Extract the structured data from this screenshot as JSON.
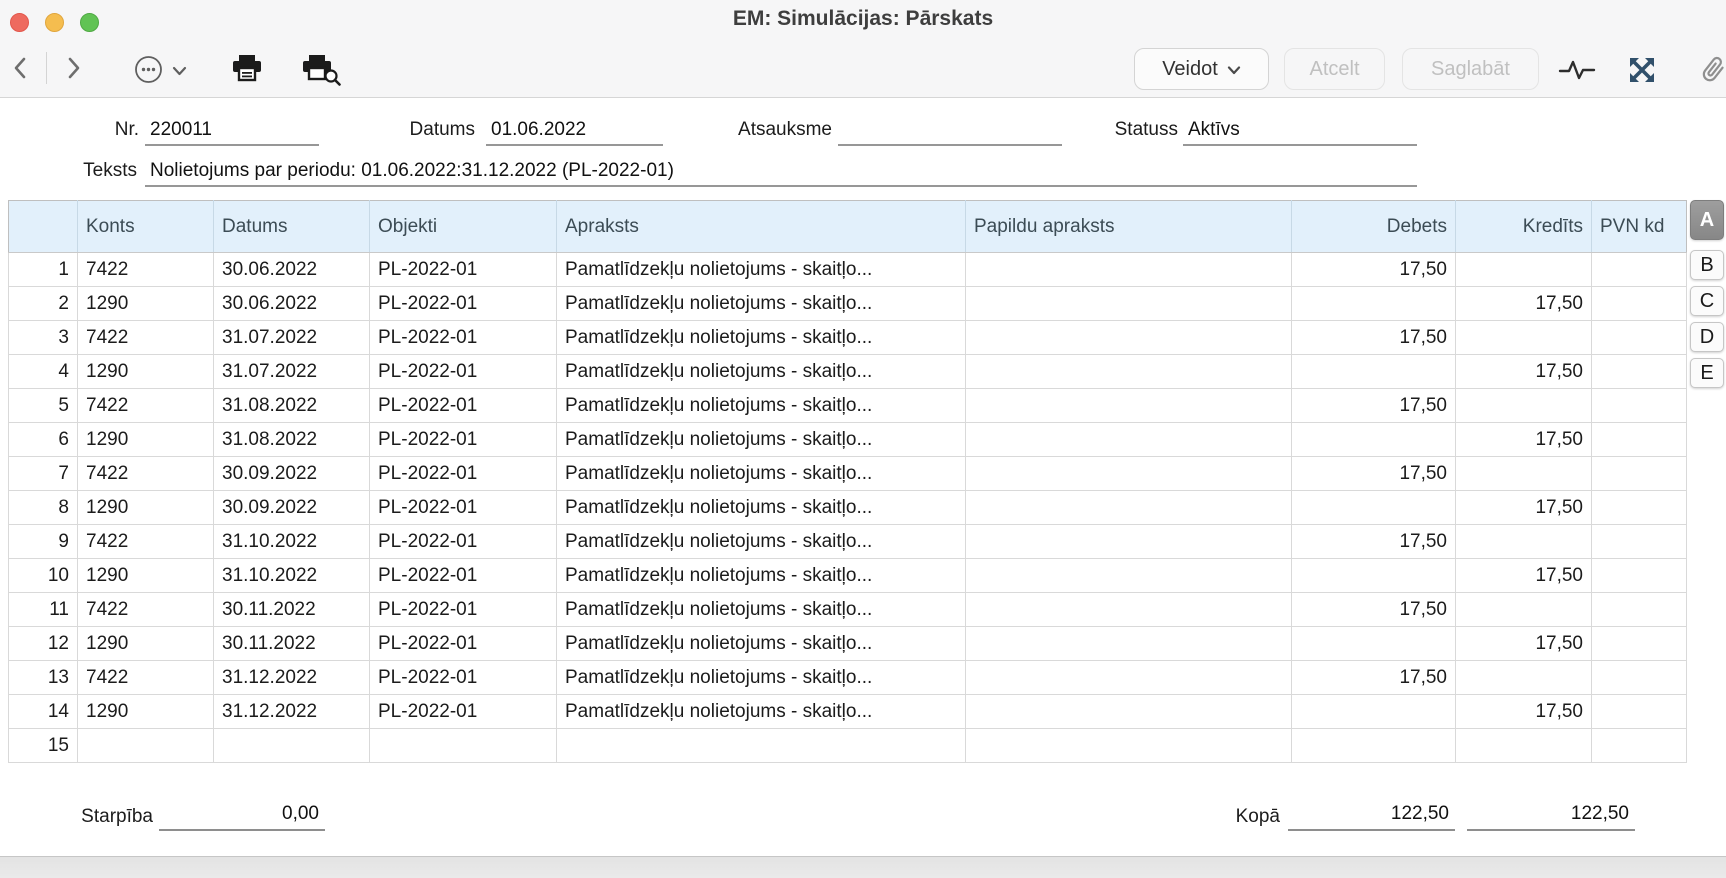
{
  "window": {
    "title": "EM: Simulācijas: Pārskats"
  },
  "toolbar": {
    "create_label": "Veidot",
    "cancel_label": "Atcelt",
    "save_label": "Saglabāt"
  },
  "form": {
    "nr": {
      "label": "Nr.",
      "value": "220011"
    },
    "datums": {
      "label": "Datums",
      "value": "01.06.2022"
    },
    "atsauksme": {
      "label": "Atsauksme",
      "value": ""
    },
    "statuss": {
      "label": "Statuss",
      "value": "Aktīvs"
    },
    "teksts": {
      "label": "Teksts",
      "value": "Nolietojums par periodu: 01.06.2022:31.12.2022 (PL-2022-01)"
    }
  },
  "table": {
    "columns": [
      {
        "key": "nr",
        "label": ""
      },
      {
        "key": "konts",
        "label": "Konts"
      },
      {
        "key": "datums",
        "label": "Datums"
      },
      {
        "key": "objekti",
        "label": "Objekti"
      },
      {
        "key": "apraksts",
        "label": "Apraksts"
      },
      {
        "key": "papildu_apraksts",
        "label": "Papildu apraksts"
      },
      {
        "key": "debets",
        "label": "Debets"
      },
      {
        "key": "kredits",
        "label": "Kredīts"
      },
      {
        "key": "pvn_kd",
        "label": "PVN kd"
      }
    ],
    "rows": [
      {
        "nr": "1",
        "konts": "7422",
        "datums": "30.06.2022",
        "objekti": "PL-2022-01",
        "apraksts": "Pamatlīdzekļu nolietojums - skaitļo...",
        "papildu_apraksts": "",
        "debets": "17,50",
        "kredits": "",
        "pvn_kd": ""
      },
      {
        "nr": "2",
        "konts": "1290",
        "datums": "30.06.2022",
        "objekti": "PL-2022-01",
        "apraksts": "Pamatlīdzekļu nolietojums - skaitļo...",
        "papildu_apraksts": "",
        "debets": "",
        "kredits": "17,50",
        "pvn_kd": ""
      },
      {
        "nr": "3",
        "konts": "7422",
        "datums": "31.07.2022",
        "objekti": "PL-2022-01",
        "apraksts": "Pamatlīdzekļu nolietojums - skaitļo...",
        "papildu_apraksts": "",
        "debets": "17,50",
        "kredits": "",
        "pvn_kd": ""
      },
      {
        "nr": "4",
        "konts": "1290",
        "datums": "31.07.2022",
        "objekti": "PL-2022-01",
        "apraksts": "Pamatlīdzekļu nolietojums - skaitļo...",
        "papildu_apraksts": "",
        "debets": "",
        "kredits": "17,50",
        "pvn_kd": ""
      },
      {
        "nr": "5",
        "konts": "7422",
        "datums": "31.08.2022",
        "objekti": "PL-2022-01",
        "apraksts": "Pamatlīdzekļu nolietojums - skaitļo...",
        "papildu_apraksts": "",
        "debets": "17,50",
        "kredits": "",
        "pvn_kd": ""
      },
      {
        "nr": "6",
        "konts": "1290",
        "datums": "31.08.2022",
        "objekti": "PL-2022-01",
        "apraksts": "Pamatlīdzekļu nolietojums - skaitļo...",
        "papildu_apraksts": "",
        "debets": "",
        "kredits": "17,50",
        "pvn_kd": ""
      },
      {
        "nr": "7",
        "konts": "7422",
        "datums": "30.09.2022",
        "objekti": "PL-2022-01",
        "apraksts": "Pamatlīdzekļu nolietojums - skaitļo...",
        "papildu_apraksts": "",
        "debets": "17,50",
        "kredits": "",
        "pvn_kd": ""
      },
      {
        "nr": "8",
        "konts": "1290",
        "datums": "30.09.2022",
        "objekti": "PL-2022-01",
        "apraksts": "Pamatlīdzekļu nolietojums - skaitļo...",
        "papildu_apraksts": "",
        "debets": "",
        "kredits": "17,50",
        "pvn_kd": ""
      },
      {
        "nr": "9",
        "konts": "7422",
        "datums": "31.10.2022",
        "objekti": "PL-2022-01",
        "apraksts": "Pamatlīdzekļu nolietojums - skaitļo...",
        "papildu_apraksts": "",
        "debets": "17,50",
        "kredits": "",
        "pvn_kd": ""
      },
      {
        "nr": "10",
        "konts": "1290",
        "datums": "31.10.2022",
        "objekti": "PL-2022-01",
        "apraksts": "Pamatlīdzekļu nolietojums - skaitļo...",
        "papildu_apraksts": "",
        "debets": "",
        "kredits": "17,50",
        "pvn_kd": ""
      },
      {
        "nr": "11",
        "konts": "7422",
        "datums": "30.11.2022",
        "objekti": "PL-2022-01",
        "apraksts": "Pamatlīdzekļu nolietojums - skaitļo...",
        "papildu_apraksts": "",
        "debets": "17,50",
        "kredits": "",
        "pvn_kd": ""
      },
      {
        "nr": "12",
        "konts": "1290",
        "datums": "30.11.2022",
        "objekti": "PL-2022-01",
        "apraksts": "Pamatlīdzekļu nolietojums - skaitļo...",
        "papildu_apraksts": "",
        "debets": "",
        "kredits": "17,50",
        "pvn_kd": ""
      },
      {
        "nr": "13",
        "konts": "7422",
        "datums": "31.12.2022",
        "objekti": "PL-2022-01",
        "apraksts": "Pamatlīdzekļu nolietojums - skaitļo...",
        "papildu_apraksts": "",
        "debets": "17,50",
        "kredits": "",
        "pvn_kd": ""
      },
      {
        "nr": "14",
        "konts": "1290",
        "datums": "31.12.2022",
        "objekti": "PL-2022-01",
        "apraksts": "Pamatlīdzekļu nolietojums - skaitļo...",
        "papildu_apraksts": "",
        "debets": "",
        "kredits": "17,50",
        "pvn_kd": ""
      },
      {
        "nr": "15",
        "konts": "",
        "datums": "",
        "objekti": "",
        "apraksts": "",
        "papildu_apraksts": "",
        "debets": "",
        "kredits": "",
        "pvn_kd": ""
      }
    ]
  },
  "side_tabs": {
    "selected": "A",
    "items": [
      "A",
      "B",
      "C",
      "D",
      "E"
    ]
  },
  "footer": {
    "starpiba": {
      "label": "Starpība",
      "value": "0,00"
    },
    "kopa": {
      "label": "Kopā",
      "debets": "122,50",
      "kredits": "122,50"
    }
  },
  "colors": {
    "table_header_bg": "#e2f0fb",
    "selected_tab_bg": "#8f8f8f",
    "traffic_red": "#ee6a5f",
    "traffic_yellow": "#f5bd4f",
    "traffic_green": "#61c354",
    "expand_icon": "#31506b"
  }
}
